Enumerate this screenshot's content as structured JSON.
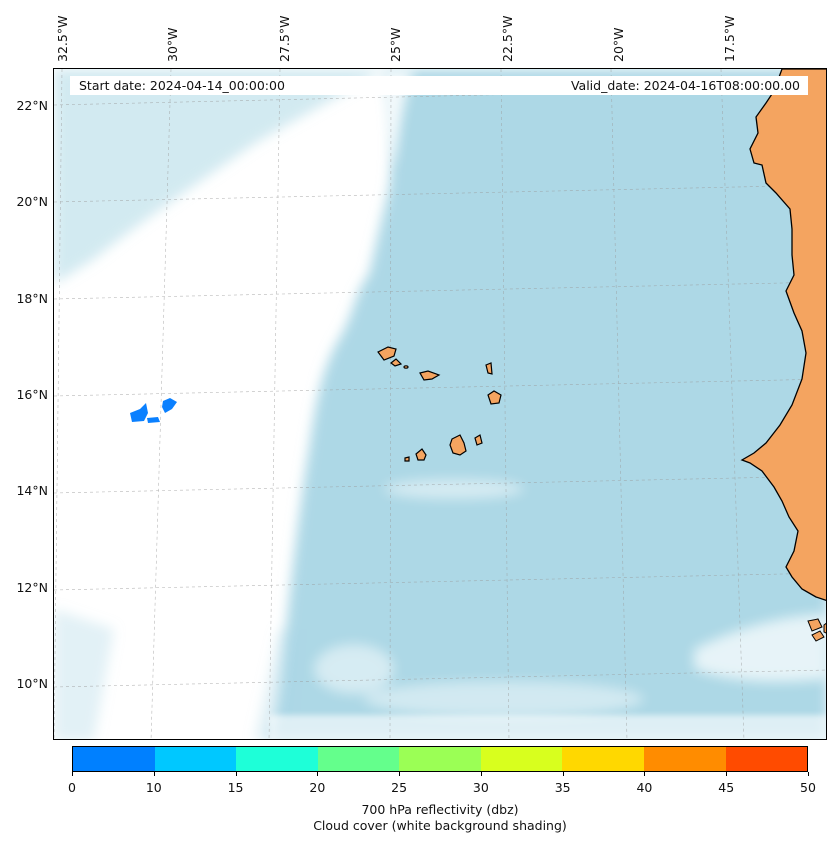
{
  "map": {
    "start_date": "Start date: 2024-04-14_00:00:00",
    "valid_date": "Valid_date: 2024-04-16T08:00:00.00",
    "longitude_labels": [
      "32.5°W",
      "30°W",
      "27.5°W",
      "25°W",
      "22.5°W",
      "20°W",
      "17.5°W"
    ],
    "latitude_labels": [
      "22°N",
      "20°N",
      "18°N",
      "16°N",
      "14°N",
      "12°N",
      "10°N"
    ],
    "land_color": "#f4a460",
    "cloud_color": "#add8e6",
    "reflectivity_cell_color": "#0a80ff"
  },
  "colorbar": {
    "ticks": [
      "0",
      "10",
      "15",
      "20",
      "25",
      "30",
      "35",
      "40",
      "45",
      "50"
    ],
    "colors": [
      "#0080ff",
      "#00c8ff",
      "#1effd8",
      "#64ff8c",
      "#9bff55",
      "#d8ff1e",
      "#ffd800",
      "#ff8c00",
      "#ff4b00"
    ],
    "label": "700 hPa reflectivity (dbz)",
    "sublabel": "Cloud cover (white background shading)"
  }
}
